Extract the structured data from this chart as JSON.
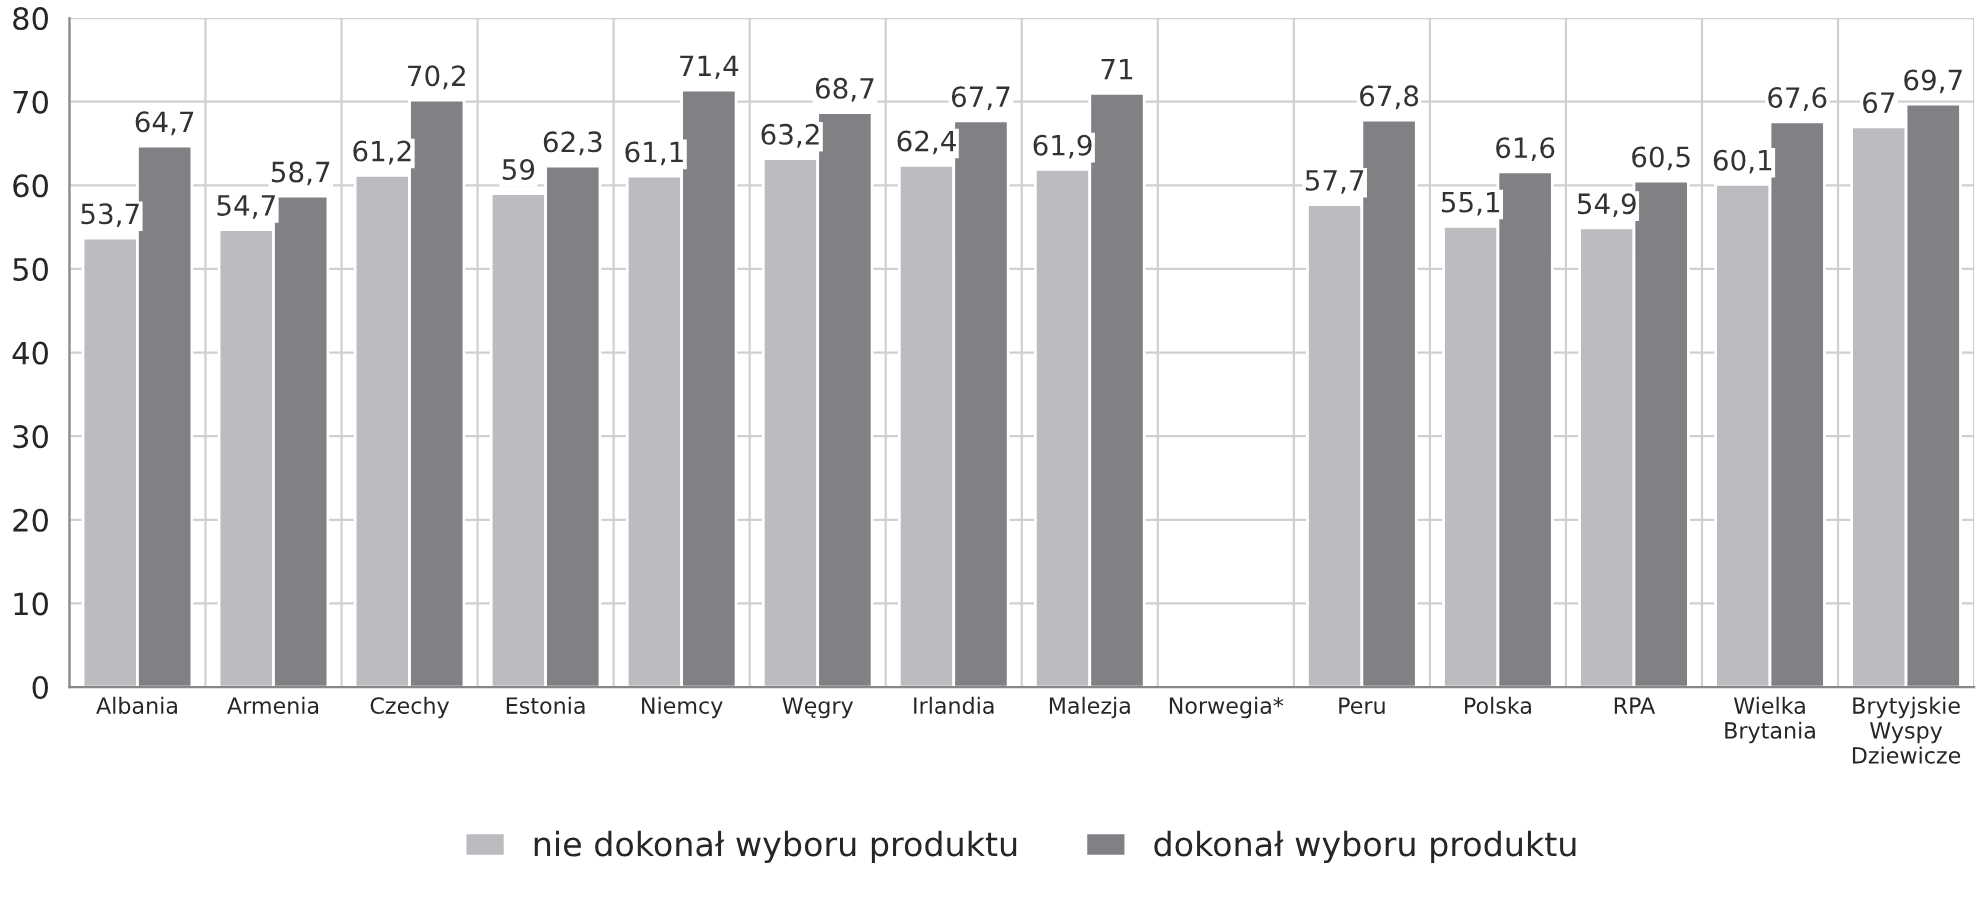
{
  "chart_data": {
    "type": "bar",
    "categories": [
      "Albania",
      "Armenia",
      "Czechy",
      "Estonia",
      "Niemcy",
      "Węgry",
      "Irlandia",
      "Malezja",
      "Norwegia*",
      "Peru",
      "Polska",
      "RPA",
      "Wielka\nBrytania",
      "Brytyjskie\nWyspy\nDziewicze"
    ],
    "series": [
      {
        "name": "nie dokonał wyboru produktu",
        "color": "#bcbcc0",
        "values": [
          53.7,
          54.7,
          61.2,
          59,
          61.1,
          63.2,
          62.4,
          61.9,
          null,
          57.7,
          55.1,
          54.9,
          60.1,
          67
        ],
        "value_labels": [
          "53,7",
          "54,7",
          "61,2",
          "59",
          "61,1",
          "63,2",
          "62,4",
          "61,9",
          null,
          "57,7",
          "55,1",
          "54,9",
          "60,1",
          "67"
        ]
      },
      {
        "name": "dokonał wyboru produktu",
        "color": "#808085",
        "values": [
          64.7,
          58.7,
          70.2,
          62.3,
          71.4,
          68.7,
          67.7,
          71,
          null,
          67.8,
          61.6,
          60.5,
          67.6,
          69.7
        ],
        "value_labels": [
          "64,7",
          "58,7",
          "70,2",
          "62,3",
          "71,4",
          "68,7",
          "67,7",
          "71",
          null,
          "67,8",
          "61,6",
          "60,5",
          "67,6",
          "69,7"
        ]
      }
    ],
    "ylim": [
      0,
      80
    ],
    "yticks": [
      0,
      10,
      20,
      30,
      40,
      50,
      60,
      70,
      80
    ],
    "grid": true,
    "legend": "bottom"
  }
}
